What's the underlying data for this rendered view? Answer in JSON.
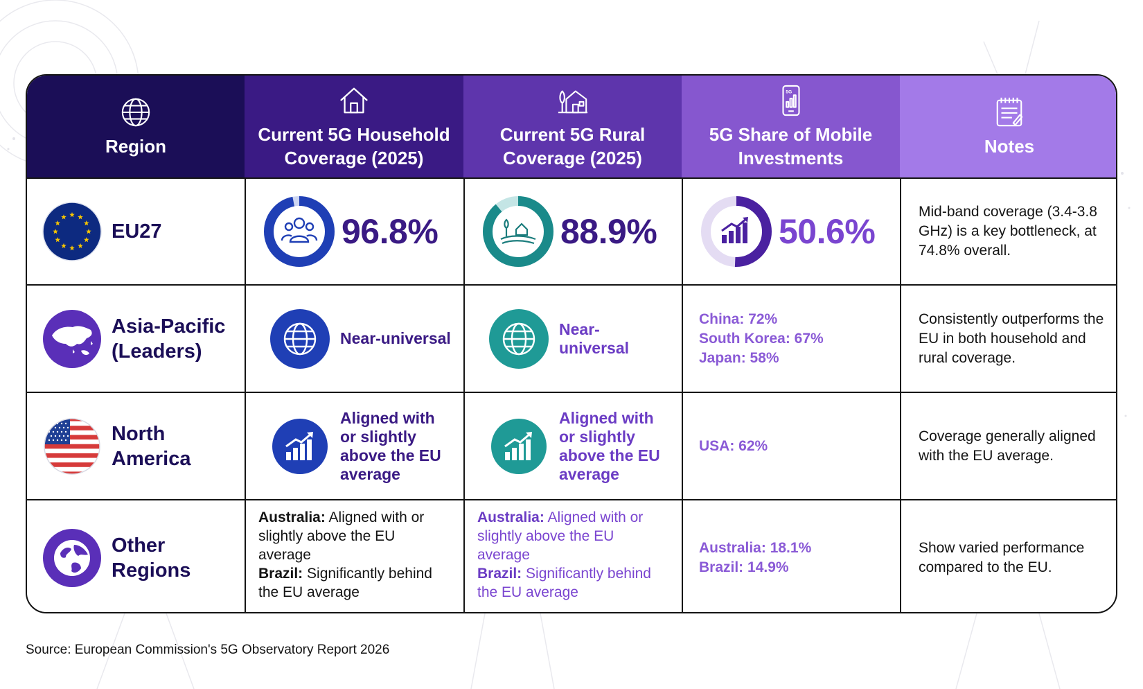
{
  "chart_data": {
    "type": "table",
    "columns": [
      {
        "label": "Region",
        "icon": "globe-icon"
      },
      {
        "label": "Current 5G Household Coverage (2025)",
        "icon": "house-icon"
      },
      {
        "label": "Current 5G Rural Coverage (2025)",
        "icon": "rural-house-icon"
      },
      {
        "label": "5G Share of Mobile Investments",
        "icon": "phone-chart-icon"
      },
      {
        "label": "Notes",
        "icon": "notepad-icon"
      }
    ],
    "rows": [
      {
        "region": "EU27",
        "region_icon": "eu-flag-icon",
        "household": "96.8%",
        "household_value": 96.8,
        "rural": "88.9%",
        "rural_value": 88.9,
        "investment": "50.6%",
        "investment_value": 50.6,
        "notes": "Mid-band coverage (3.4-3.8 GHz) is a key bottleneck, at 74.8% overall."
      },
      {
        "region": "Asia-Pacific (Leaders)",
        "region_icon": "asia-map-icon",
        "household": "Near-universal",
        "rural": "Near-universal",
        "investment_lines": [
          "China: 72%",
          "South Korea: 67%",
          "Japan: 58%"
        ],
        "notes": "Consistently outperforms the EU in both household and rural coverage."
      },
      {
        "region": "North America",
        "region_icon": "us-flag-icon",
        "household": "Aligned with or slightly above the EU average",
        "rural": "Aligned with or slightly above the EU average",
        "investment_lines": [
          "USA: 62%"
        ],
        "notes": "Coverage generally aligned with the EU average."
      },
      {
        "region": "Other Regions",
        "region_icon": "world-globe-icon",
        "household_parts": [
          {
            "label": "Australia:",
            "text": " Aligned with or slightly above the EU average"
          },
          {
            "label": "Brazil:",
            "text": " Significantly behind the EU average"
          }
        ],
        "rural_parts": [
          {
            "label": "Australia:",
            "text": " Aligned with or slightly above the EU average"
          },
          {
            "label": "Brazil:",
            "text": " Significantly behind the EU average"
          }
        ],
        "investment_lines": [
          "Australia: 18.1%",
          "Brazil: 14.9%"
        ],
        "notes": "Show varied performance compared to the EU."
      }
    ]
  },
  "colors": {
    "header": [
      "#1b0e57",
      "#3a1a84",
      "#5e35ac",
      "#8657cf",
      "#a37ae8"
    ],
    "household_ring": "#1f3fb5",
    "rural_ring": "#1a8a8a",
    "investment_ring": "#4a21a0"
  },
  "source": "Source: European Commission's 5G Observatory Report 2026"
}
